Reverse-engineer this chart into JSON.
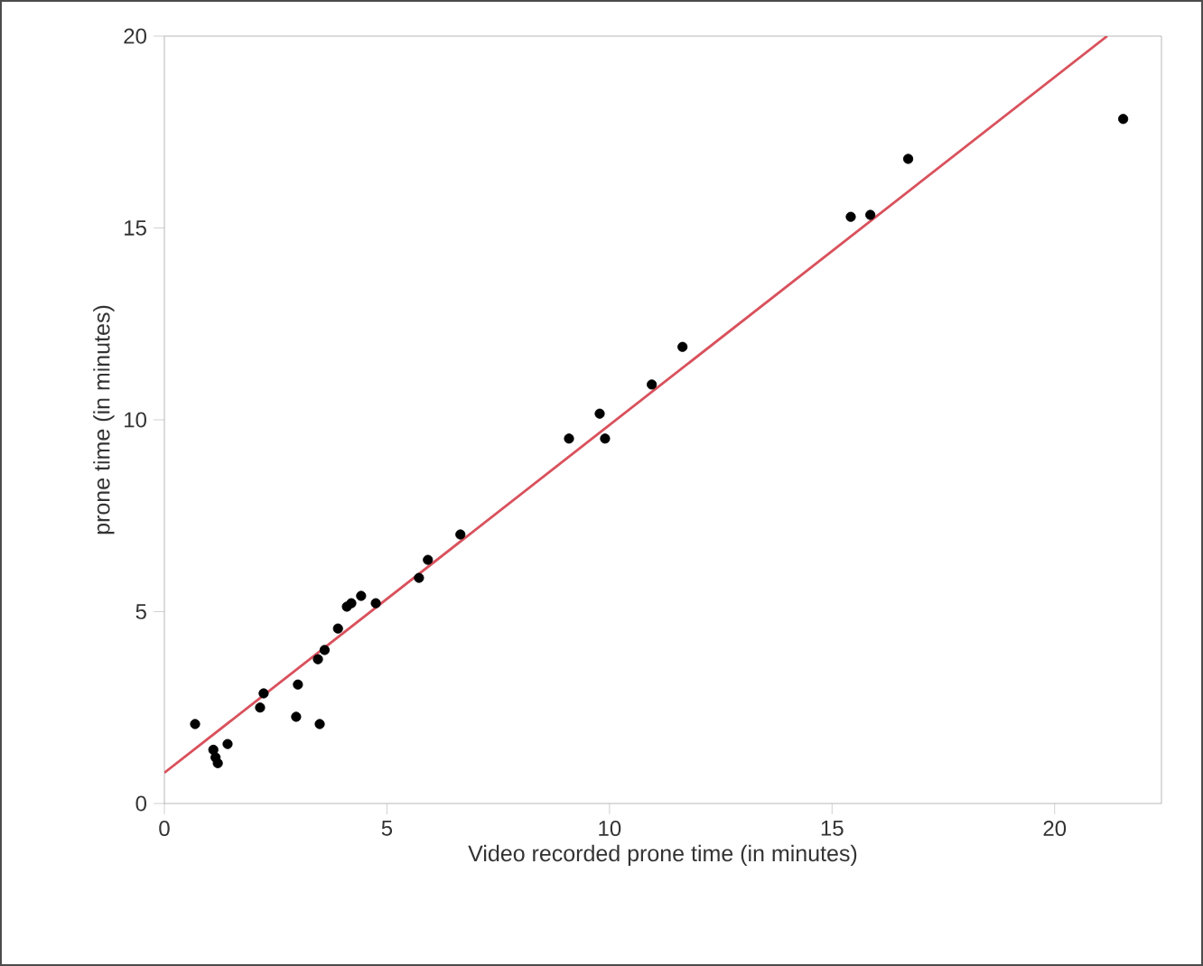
{
  "chart_data": {
    "type": "scatter",
    "xlabel": "Video recorded prone time (in minutes)",
    "ylabel": "prone time (in minutes)",
    "xlim": [
      0,
      22.4
    ],
    "ylim": [
      0,
      20
    ],
    "xticks": [
      0,
      5,
      10,
      15,
      20
    ],
    "yticks": [
      0,
      5,
      10,
      15,
      20
    ],
    "series": [
      {
        "type": "scatter",
        "marker": "circle",
        "color": "#000000",
        "x": [
          0.69,
          1.1,
          1.15,
          1.2,
          1.42,
          2.15,
          2.23,
          2.96,
          3.0,
          3.49,
          3.45,
          3.6,
          3.9,
          4.1,
          4.2,
          4.42,
          4.75,
          5.72,
          5.92,
          6.65,
          9.09,
          9.78,
          9.9,
          10.95,
          11.64,
          15.42,
          15.86,
          16.71,
          21.54
        ],
        "values": [
          2.07,
          1.4,
          1.2,
          1.05,
          1.55,
          2.5,
          2.87,
          2.26,
          3.1,
          2.07,
          3.76,
          4.0,
          4.56,
          5.13,
          5.22,
          5.41,
          5.22,
          5.88,
          6.35,
          7.01,
          9.51,
          10.16,
          9.51,
          10.92,
          11.9,
          15.29,
          15.34,
          16.8,
          17.84
        ]
      },
      {
        "type": "line",
        "color": "#d9515c",
        "x": [
          0,
          21.18
        ],
        "values": [
          0.8,
          20
        ]
      }
    ]
  }
}
